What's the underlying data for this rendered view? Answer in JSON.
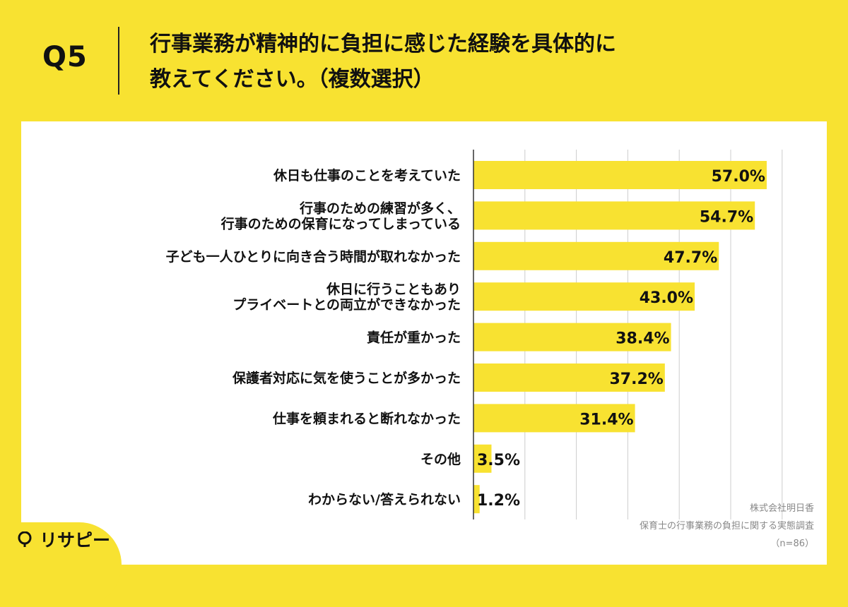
{
  "header": {
    "question_label": "Q5",
    "question_line1": "行事業務が精神的に負担に感じた経験を具体的に",
    "question_line2": "教えてください。（複数選択）"
  },
  "source": {
    "company": "株式会社明日香",
    "survey": "保育士の行事業務の負担に関する実態調査",
    "sample": "（n=86）"
  },
  "logo": {
    "text": "リサピー"
  },
  "colors": {
    "bar": "#f8e231",
    "background": "#f8e231",
    "text": "#111111",
    "grid": "#cccccc"
  },
  "chart_data": {
    "type": "bar",
    "orientation": "horizontal",
    "categories": [
      [
        "休日も仕事のことを考えていた"
      ],
      [
        "行事のための練習が多く、",
        "行事のための保育になってしまっている"
      ],
      [
        "子ども一人ひとりに向き合う時間が取れなかった"
      ],
      [
        "休日に行うこともあり",
        "プライベートとの両立ができなかった"
      ],
      [
        "責任が重かった"
      ],
      [
        "保護者対応に気を使うことが多かった"
      ],
      [
        "仕事を頼まれると断れなかった"
      ],
      [
        "その他"
      ],
      [
        "わからない/答えられない"
      ]
    ],
    "values": [
      57.0,
      54.7,
      47.7,
      43.0,
      38.4,
      37.2,
      31.4,
      3.5,
      1.2
    ],
    "value_labels": [
      "57.0%",
      "54.7%",
      "47.7%",
      "43.0%",
      "38.4%",
      "37.2%",
      "31.4%",
      "3.5%",
      "1.2%"
    ],
    "xlim": [
      0,
      60
    ],
    "grid": true
  }
}
